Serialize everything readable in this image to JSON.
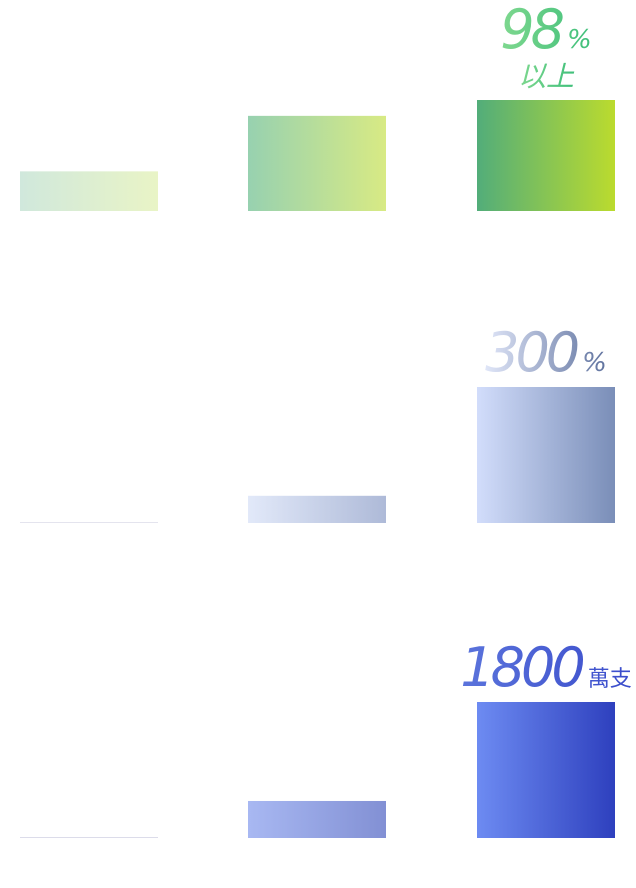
{
  "chart_data": [
    {
      "type": "bar",
      "values": [
        35,
        84,
        98
      ],
      "colors": [
        [
          "#d0e8dc",
          "#e9f4c6"
        ],
        [
          "#97d1b0",
          "#d8ea84"
        ],
        [
          "#52ad7a",
          "#bbdb2e"
        ]
      ],
      "label": {
        "number": "98",
        "unit": "%",
        "note": "以上",
        "colors": [
          "#7fd88f",
          "#3fbf7a"
        ]
      }
    },
    {
      "type": "bar",
      "values": [
        0,
        60,
        300
      ],
      "colors": [
        [
          "#e4e4ee",
          "#e4e4ee"
        ],
        [
          "#e2e9f9",
          "#aebad8"
        ],
        [
          "#d2ddfb",
          "#7a8eb8"
        ]
      ],
      "label": {
        "number": "300",
        "unit": "%",
        "colors": [
          "#e0e6f8",
          "#5f729e"
        ]
      }
    },
    {
      "type": "bar",
      "values": [
        0,
        490,
        1800
      ],
      "colors": [
        [
          "#dcdcea",
          "#dcdcea"
        ],
        [
          "#a8b8f2",
          "#8290d4"
        ],
        [
          "#6d8bf2",
          "#2e40be"
        ]
      ],
      "label": {
        "number": "1800",
        "unit": "萬支",
        "colors": [
          "#5b74dc",
          "#3a4ccb"
        ]
      }
    }
  ]
}
